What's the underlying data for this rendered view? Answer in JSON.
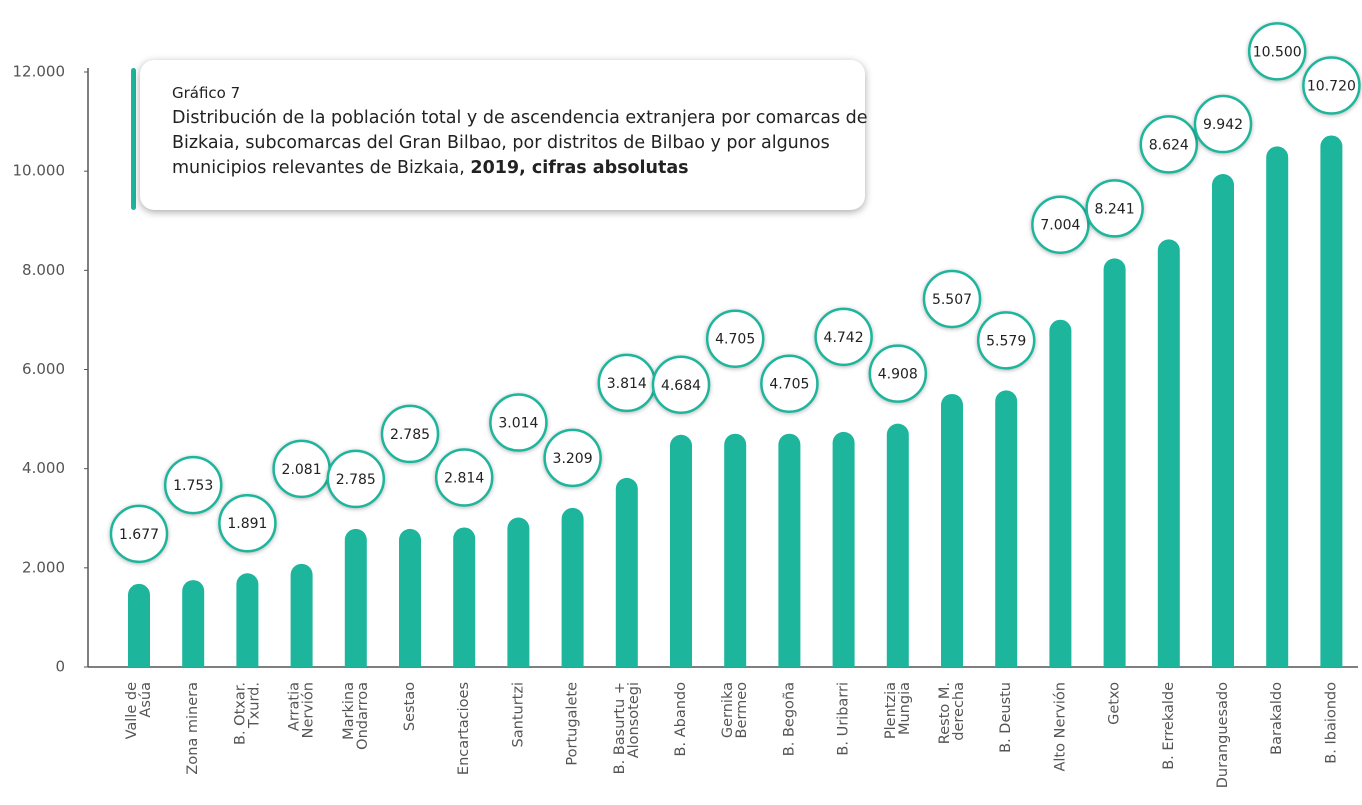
{
  "chart_data": {
    "type": "bar",
    "label": "Gráfico 7",
    "title": "Distribución de la población total y de ascendencia extranjera por comarcas de Bizkaia, subcomarcas del Gran Bilbao, por distritos de Bilbao y por algunos municipios relevantes de Bizkaia,",
    "title_emphasis": "2019, cifras absolutas",
    "categories": [
      "Valle de\nAsúa",
      "Zona minera",
      "B. Otxar.\nTxurd.",
      "Arratia\nNervión",
      "Markina\nOndarroa",
      "Sestao",
      "Encartacioes",
      "Santurtzi",
      "Portugalete",
      "B. Basurtu +\nAlonsotegi",
      "B. Abando",
      "Gernika\nBermeo",
      "B. Begoña",
      "B. Uribarri",
      "Plentzia\nMungia",
      "Resto M.\nderecha",
      "B. Deustu",
      "Alto Nervión",
      "Getxo",
      "B. Errekalde",
      "Duranguesado",
      "Barakaldo",
      "B. Ibaiondo"
    ],
    "values": [
      1677,
      1753,
      1891,
      2081,
      2785,
      2785,
      2814,
      3014,
      3209,
      3814,
      4684,
      4705,
      4705,
      4742,
      4908,
      5507,
      5579,
      7004,
      8241,
      8624,
      9942,
      10500,
      10720
    ],
    "value_labels": [
      "1.677",
      "1.753",
      "1.891",
      "2.081",
      "2.785",
      "2.785",
      "2.814",
      "3.014",
      "3.209",
      "3.814",
      "4.684",
      "4.705",
      "4.705",
      "4.742",
      "4.908",
      "5.507",
      "5.579",
      "7.004",
      "8.241",
      "8.624",
      "9.942",
      "10.500",
      "10.720"
    ],
    "color": "#1db59c",
    "ylim": [
      0,
      12000
    ],
    "yticks": [
      0,
      {
        "value": 2000,
        "label": "2.000"
      },
      {
        "value": 4000,
        "label": "4.000"
      },
      {
        "value": 6000,
        "label": "6.000"
      },
      {
        "value": 8000,
        "label": "8.000"
      },
      {
        "value": 10000,
        "label": "10.000"
      },
      {
        "value": 12000,
        "label": "12.000"
      }
    ],
    "grid": false
  }
}
